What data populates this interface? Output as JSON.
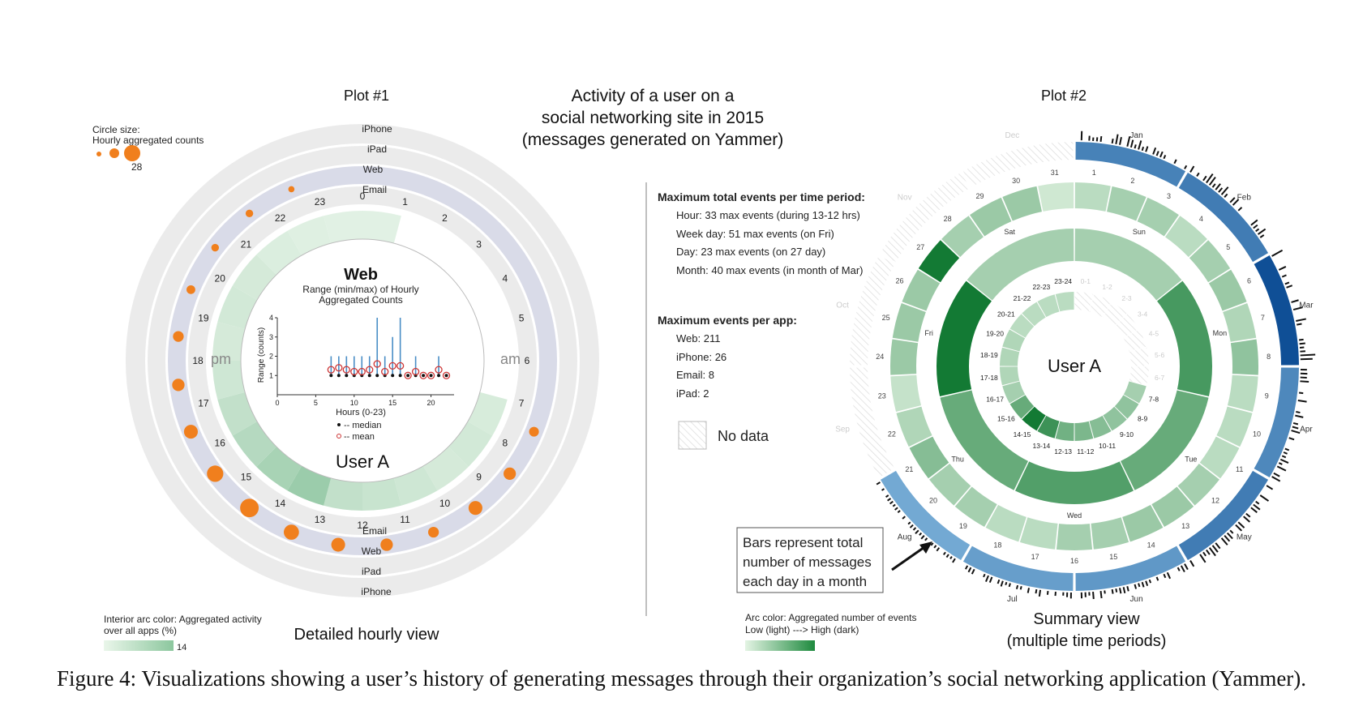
{
  "figure": {
    "caption": "Figure 4: Visualizations showing a user’s history of generating messages through their organization’s social networking application (Yammer).",
    "main_title": [
      "Activity of a user on a",
      "social networking site in 2015",
      "(messages generated on Yammer)"
    ],
    "colors": {
      "orange": "#f07f1d",
      "web_ring": "#d9dbe8",
      "ring_grey": "#ebebeb",
      "green_dark": "#1e8a3e",
      "green_light": "#e4f4e4",
      "blue_dark": "#0f4f96",
      "blue_light": "#7fb6dc"
    }
  },
  "plot1": {
    "title": "Plot #1",
    "circle_legend_title": [
      "Circle size:",
      "Hourly aggregated counts"
    ],
    "circle_legend_max": "28",
    "ring_labels_top": [
      "iPhone",
      "iPad",
      "Web",
      "Email"
    ],
    "ring_labels_bottom": [
      "Email",
      "Web",
      "iPad",
      "iPhone"
    ],
    "hour_labels": [
      "0",
      "1",
      "2",
      "3",
      "4",
      "5",
      "6",
      "7",
      "8",
      "9",
      "10",
      "11",
      "12",
      "13",
      "14",
      "15",
      "16",
      "17",
      "18",
      "19",
      "20",
      "21",
      "22",
      "23"
    ],
    "am_label": "am",
    "pm_label": "pm",
    "user_label": "User A",
    "interior_legend": [
      "Interior arc color: Aggregated activity",
      "over all apps (%)"
    ],
    "interior_legend_max": "14",
    "footer": "Detailed hourly view",
    "inner_chart": {
      "title": "Web",
      "subtitle": [
        "Range (min/max) of Hourly",
        "Aggregated Counts"
      ],
      "ylabel": "Range (counts)",
      "xlabel": "Hours (0-23)",
      "legend_median": "-- median",
      "legend_mean": "-- mean",
      "x_ticks": [
        "0",
        "5",
        "10",
        "15",
        "20"
      ],
      "y_ticks": [
        "1",
        "2",
        "3",
        "4"
      ]
    },
    "interior_arc_activity": [
      0.1,
      0,
      0,
      0,
      0,
      0,
      0,
      0.18,
      0.22,
      0.2,
      0.25,
      0.3,
      0.35,
      0.65,
      0.55,
      0.45,
      0.35,
      0.25,
      0.2,
      0.22,
      0.2,
      0.15,
      0.12,
      0.1
    ],
    "web_circles": [
      0,
      0,
      0,
      0,
      0,
      0,
      0,
      5,
      8,
      10,
      6,
      8,
      10,
      12,
      18,
      14,
      10,
      8,
      6,
      4,
      3,
      3,
      2,
      0
    ]
  },
  "chart_data": {
    "type": "scatter",
    "title": "Web",
    "xlabel": "Hours (0-23)",
    "ylabel": "Range (counts)",
    "xlim": [
      0,
      23
    ],
    "ylim": [
      0,
      4
    ],
    "series": [
      {
        "name": "range",
        "x": [
          7,
          8,
          9,
          10,
          11,
          12,
          13,
          14,
          15,
          16,
          17,
          18,
          19,
          20,
          21,
          22
        ],
        "min": [
          1,
          1,
          1,
          1,
          1,
          1,
          1,
          1,
          1,
          1,
          1,
          1,
          1,
          1,
          1,
          1
        ],
        "max": [
          2,
          2,
          2,
          2,
          2,
          2,
          4,
          2,
          3,
          4,
          1,
          2,
          1,
          1,
          2,
          1
        ]
      },
      {
        "name": "median",
        "x": [
          7,
          8,
          9,
          10,
          11,
          12,
          13,
          14,
          15,
          16,
          17,
          18,
          19,
          20,
          21,
          22
        ],
        "values": [
          1,
          1,
          1,
          1,
          1,
          1,
          1,
          1,
          1,
          1,
          1,
          1,
          1,
          1,
          1,
          1
        ]
      },
      {
        "name": "mean",
        "x": [
          7,
          8,
          9,
          10,
          11,
          12,
          13,
          14,
          15,
          16,
          17,
          18,
          19,
          20,
          21,
          22
        ],
        "values": [
          1.3,
          1.4,
          1.3,
          1.2,
          1.2,
          1.3,
          1.6,
          1.2,
          1.5,
          1.5,
          1.0,
          1.2,
          1.0,
          1.0,
          1.3,
          1.0
        ]
      }
    ]
  },
  "stats": {
    "total_title": "Maximum total events per time period:",
    "total_lines": [
      "Hour: 33 max events (during 13-12 hrs)",
      "Week day: 51 max events (on Fri)",
      "Day: 23 max events (on 27 day)",
      "Month: 40 max events (in month of Mar)"
    ],
    "app_title": "Maximum events per app:",
    "app_lines": [
      "Web: 211",
      "iPhone: 26",
      "Email: 8",
      "iPad: 2"
    ],
    "no_data": "No data"
  },
  "plot2": {
    "title": "Plot #2",
    "user_label": "User A",
    "months": [
      "Jan",
      "Feb",
      "Mar",
      "Apr",
      "May",
      "Jun",
      "Jul",
      "Aug",
      "Sep",
      "Oct",
      "Nov",
      "Dec"
    ],
    "month_values": [
      0.55,
      0.6,
      1.0,
      0.5,
      0.6,
      0.35,
      0.3,
      0.2,
      0,
      0,
      0,
      0
    ],
    "days": [
      "1",
      "2",
      "3",
      "4",
      "5",
      "6",
      "7",
      "8",
      "9",
      "10",
      "11",
      "12",
      "13",
      "14",
      "15",
      "16",
      "17",
      "18",
      "19",
      "20",
      "21",
      "22",
      "23",
      "24",
      "25",
      "26",
      "27",
      "28",
      "29",
      "30",
      "31"
    ],
    "day_values": [
      0.2,
      0.3,
      0.3,
      0.2,
      0.3,
      0.35,
      0.25,
      0.4,
      0.2,
      0.2,
      0.2,
      0.3,
      0.35,
      0.35,
      0.3,
      0.3,
      0.2,
      0.2,
      0.3,
      0.3,
      0.45,
      0.25,
      0.15,
      0.35,
      0.35,
      0.35,
      1.0,
      0.3,
      0.35,
      0.35,
      0.1
    ],
    "weekdays": [
      "Sun",
      "Mon",
      "Tue",
      "Wed",
      "Thu",
      "Fri",
      "Sat"
    ],
    "weekday_values": [
      0.3,
      0.75,
      0.6,
      0.7,
      0.6,
      1.0,
      0.3
    ],
    "hours": [
      "0-1",
      "1-2",
      "2-3",
      "3-4",
      "4-5",
      "5-6",
      "6-7",
      "7-8",
      "8-9",
      "9-10",
      "10-11",
      "11-12",
      "12-13",
      "13-14",
      "14-15",
      "15-16",
      "16-17",
      "17-18",
      "18-19",
      "19-20",
      "20-21",
      "21-22",
      "22-23",
      "23-24"
    ],
    "hour_values": [
      0,
      0,
      0,
      0,
      0,
      0,
      0,
      0.3,
      0.4,
      0.4,
      0.45,
      0.5,
      0.55,
      0.8,
      1.0,
      0.6,
      0.3,
      0.25,
      0.25,
      0.25,
      0.2,
      0.2,
      0.2,
      0.2
    ],
    "daily_bars_note": [
      "Bars represent total",
      "number of messages",
      "each day in a month"
    ],
    "arc_legend": [
      "Arc color: Aggregated number of events",
      "Low (light) ---> High (dark)"
    ],
    "footer": [
      "Summary view",
      "(multiple time periods)"
    ]
  }
}
